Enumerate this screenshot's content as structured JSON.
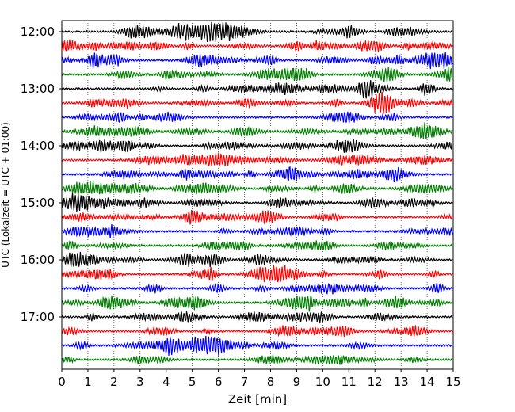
{
  "chart_data": {
    "type": "line",
    "description_type": "seismic helicorder",
    "xlabel": "Zeit  [min]",
    "ylabel": "UTC (Lokalzeit = UTC + 01:00)",
    "xlim": [
      0,
      15
    ],
    "x_ticks": [
      0,
      1,
      2,
      3,
      4,
      5,
      6,
      7,
      8,
      9,
      10,
      11,
      12,
      13,
      14,
      15
    ],
    "x_tick_labels": [
      "0",
      "1",
      "2",
      "3",
      "4",
      "5",
      "6",
      "7",
      "8",
      "9",
      "10",
      "11",
      "12",
      "13",
      "14",
      "15"
    ],
    "y_tick_labels": [
      "12:00",
      "13:00",
      "14:00",
      "15:00",
      "16:00",
      "17:00"
    ],
    "trace_start_time": "12:00",
    "trace_interval_minutes": 15,
    "trace_count": 24,
    "trace_colors": [
      "#000000",
      "#ff0000",
      "#0000ff",
      "#008000"
    ],
    "grid": {
      "vertical": true,
      "style": "dotted"
    }
  }
}
